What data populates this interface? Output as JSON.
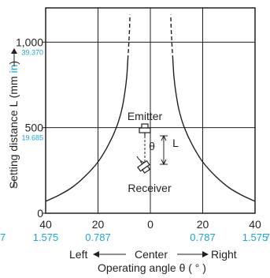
{
  "chart_data": {
    "type": "line",
    "ylabel_prefix": "Setting distance L (mm ",
    "ylabel_unit": "in",
    "ylabel_suffix": ")",
    "xlabel": "Operating angle θ ( ° )",
    "xlim": [
      40,
      -40
    ],
    "ylim": [
      0,
      1200
    ],
    "x_ticks": [
      {
        "value": -40,
        "mm": "40",
        "in": "1.575"
      },
      {
        "value": -20,
        "mm": "20",
        "in": "0.787"
      },
      {
        "value": 0,
        "mm": "0",
        "in": ""
      },
      {
        "value": 20,
        "mm": "20",
        "in": "0.787"
      },
      {
        "value": 40,
        "mm": "40",
        "in": "1.575"
      }
    ],
    "y_ticks": [
      {
        "value": 0,
        "mm": "0",
        "in": ""
      },
      {
        "value": 500,
        "mm": "500",
        "in": "19.685"
      },
      {
        "value": 1000,
        "mm": "1,000",
        "in": "39.370"
      }
    ],
    "extra_x_in_labels": {
      "left": "7",
      "right": "7"
    },
    "direction_labels": {
      "left": "Left",
      "center": "Center",
      "right": "Right"
    },
    "annotation": {
      "emitter": "Emitter",
      "receiver": "Receiver",
      "theta": "θ",
      "L": "L"
    },
    "grid": true,
    "series": [
      {
        "side": "left",
        "solid": [
          [
            -40,
            70
          ],
          [
            -35,
            105
          ],
          [
            -30,
            150
          ],
          [
            -25,
            215
          ],
          [
            -20,
            300
          ],
          [
            -16,
            400
          ],
          [
            -13,
            500
          ],
          [
            -11,
            600
          ],
          [
            -9.8,
            700
          ],
          [
            -9,
            800
          ],
          [
            -8.6,
            900
          ]
        ],
        "dashed": [
          [
            -8.6,
            900
          ],
          [
            -8.2,
            1000
          ],
          [
            -7.9,
            1100
          ],
          [
            -7.8,
            1160
          ]
        ]
      },
      {
        "side": "right",
        "solid": [
          [
            40,
            70
          ],
          [
            35,
            105
          ],
          [
            30,
            150
          ],
          [
            25,
            215
          ],
          [
            20,
            300
          ],
          [
            16,
            400
          ],
          [
            13,
            500
          ],
          [
            11,
            600
          ],
          [
            9.8,
            700
          ],
          [
            9,
            800
          ],
          [
            8.6,
            900
          ]
        ],
        "dashed": [
          [
            8.6,
            900
          ],
          [
            8.2,
            1000
          ],
          [
            7.9,
            1100
          ],
          [
            7.8,
            1160
          ]
        ]
      }
    ]
  }
}
